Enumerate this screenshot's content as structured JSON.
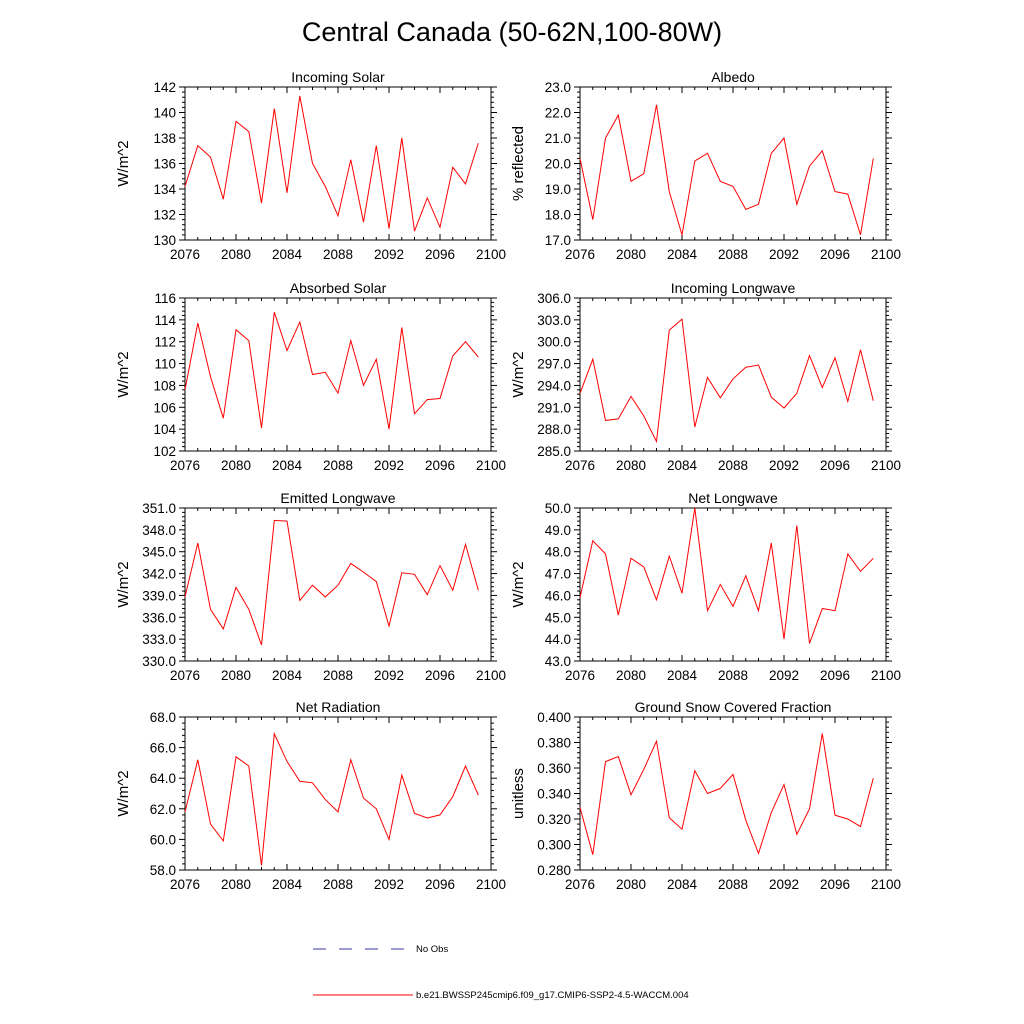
{
  "figure": {
    "title": "Central Canada (50-62N,100-80W)",
    "colors": {
      "series": "#ff0000",
      "obs": "#3a3aa0",
      "axis": "#000000"
    }
  },
  "legend": {
    "obs_label": "No Obs",
    "model_label": "b.e21.BWSSP245cmip6.f09_g17.CMIP6-SSP2-4.5-WACCM.004"
  },
  "chart_data": [
    {
      "type": "line",
      "title": "Incoming Solar",
      "ylabel": "W/m^2",
      "xlabel": "",
      "xlim": [
        2076,
        2100
      ],
      "xticks": [
        2076,
        2080,
        2084,
        2088,
        2092,
        2096,
        2100
      ],
      "ylim": [
        130,
        142
      ],
      "yticks": [
        130,
        132,
        134,
        136,
        138,
        140,
        142
      ],
      "ytick_decimals": 0,
      "x": [
        2076,
        2077,
        2078,
        2079,
        2080,
        2081,
        2082,
        2083,
        2084,
        2085,
        2086,
        2087,
        2088,
        2089,
        2090,
        2091,
        2092,
        2093,
        2094,
        2095,
        2096,
        2097,
        2098,
        2099
      ],
      "values": [
        134.2,
        137.4,
        136.5,
        133.2,
        139.3,
        138.5,
        132.9,
        140.3,
        133.7,
        141.3,
        136.0,
        134.2,
        131.9,
        136.3,
        131.4,
        137.4,
        130.9,
        138.0,
        130.7,
        133.3,
        131.0,
        135.7,
        134.4,
        137.6
      ]
    },
    {
      "type": "line",
      "title": "Albedo",
      "ylabel": "% reflected",
      "xlabel": "",
      "xlim": [
        2076,
        2100
      ],
      "xticks": [
        2076,
        2080,
        2084,
        2088,
        2092,
        2096,
        2100
      ],
      "ylim": [
        17.0,
        23.0
      ],
      "yticks": [
        17.0,
        18.0,
        19.0,
        20.0,
        21.0,
        22.0,
        23.0
      ],
      "ytick_decimals": 1,
      "x": [
        2076,
        2077,
        2078,
        2079,
        2080,
        2081,
        2082,
        2083,
        2084,
        2085,
        2086,
        2087,
        2088,
        2089,
        2090,
        2091,
        2092,
        2093,
        2094,
        2095,
        2096,
        2097,
        2098,
        2099
      ],
      "values": [
        20.2,
        17.8,
        21.0,
        21.9,
        19.3,
        19.6,
        22.3,
        18.9,
        17.2,
        20.1,
        20.4,
        19.3,
        19.1,
        18.2,
        18.4,
        20.4,
        21.0,
        18.4,
        19.9,
        20.5,
        18.9,
        18.8,
        17.2,
        20.2
      ]
    },
    {
      "type": "line",
      "title": "Absorbed Solar",
      "ylabel": "W/m^2",
      "xlabel": "",
      "xlim": [
        2076,
        2100
      ],
      "xticks": [
        2076,
        2080,
        2084,
        2088,
        2092,
        2096,
        2100
      ],
      "ylim": [
        102,
        116
      ],
      "yticks": [
        102,
        104,
        106,
        108,
        110,
        112,
        114,
        116
      ],
      "ytick_decimals": 0,
      "x": [
        2076,
        2077,
        2078,
        2079,
        2080,
        2081,
        2082,
        2083,
        2084,
        2085,
        2086,
        2087,
        2088,
        2089,
        2090,
        2091,
        2092,
        2093,
        2094,
        2095,
        2096,
        2097,
        2098,
        2099
      ],
      "values": [
        107.6,
        113.7,
        108.8,
        105.0,
        113.1,
        112.1,
        104.1,
        114.7,
        111.2,
        113.8,
        109.0,
        109.2,
        107.3,
        112.1,
        108.0,
        110.4,
        104.0,
        113.3,
        105.4,
        106.7,
        106.8,
        110.7,
        112.0,
        110.6
      ]
    },
    {
      "type": "line",
      "title": "Incoming Longwave",
      "ylabel": "W/m^2",
      "xlabel": "",
      "xlim": [
        2076,
        2100
      ],
      "xticks": [
        2076,
        2080,
        2084,
        2088,
        2092,
        2096,
        2100
      ],
      "ylim": [
        285.0,
        306.0
      ],
      "yticks": [
        285.0,
        288.0,
        291.0,
        294.0,
        297.0,
        300.0,
        303.0,
        306.0
      ],
      "ytick_decimals": 1,
      "x": [
        2076,
        2077,
        2078,
        2079,
        2080,
        2081,
        2082,
        2083,
        2084,
        2085,
        2086,
        2087,
        2088,
        2089,
        2090,
        2091,
        2092,
        2093,
        2094,
        2095,
        2096,
        2097,
        2098,
        2099
      ],
      "values": [
        292.9,
        297.6,
        289.2,
        289.4,
        292.5,
        289.8,
        286.3,
        301.6,
        303.1,
        288.3,
        295.1,
        292.3,
        294.9,
        296.5,
        296.8,
        292.4,
        290.9,
        292.9,
        298.1,
        293.7,
        297.8,
        291.8,
        298.9,
        291.9
      ]
    },
    {
      "type": "line",
      "title": "Emitted Longwave",
      "ylabel": "W/m^2",
      "xlabel": "",
      "xlim": [
        2076,
        2100
      ],
      "xticks": [
        2076,
        2080,
        2084,
        2088,
        2092,
        2096,
        2100
      ],
      "ylim": [
        330.0,
        351.0
      ],
      "yticks": [
        330.0,
        333.0,
        336.0,
        339.0,
        342.0,
        345.0,
        348.0,
        351.0
      ],
      "ytick_decimals": 1,
      "x": [
        2076,
        2077,
        2078,
        2079,
        2080,
        2081,
        2082,
        2083,
        2084,
        2085,
        2086,
        2087,
        2088,
        2089,
        2090,
        2091,
        2092,
        2093,
        2094,
        2095,
        2096,
        2097,
        2098,
        2099
      ],
      "values": [
        338.8,
        346.2,
        337.1,
        334.4,
        340.1,
        337.1,
        332.2,
        349.3,
        349.2,
        338.3,
        340.4,
        338.8,
        340.4,
        343.4,
        342.2,
        340.9,
        334.8,
        342.1,
        341.9,
        339.1,
        343.1,
        339.7,
        346.0,
        339.7
      ]
    },
    {
      "type": "line",
      "title": "Net Longwave",
      "ylabel": "W/m^2",
      "xlabel": "",
      "xlim": [
        2076,
        2100
      ],
      "xticks": [
        2076,
        2080,
        2084,
        2088,
        2092,
        2096,
        2100
      ],
      "ylim": [
        43.0,
        50.0
      ],
      "yticks": [
        43.0,
        44.0,
        45.0,
        46.0,
        47.0,
        48.0,
        49.0,
        50.0
      ],
      "ytick_decimals": 1,
      "x": [
        2076,
        2077,
        2078,
        2079,
        2080,
        2081,
        2082,
        2083,
        2084,
        2085,
        2086,
        2087,
        2088,
        2089,
        2090,
        2091,
        2092,
        2093,
        2094,
        2095,
        2096,
        2097,
        2098,
        2099
      ],
      "values": [
        45.9,
        48.5,
        47.9,
        45.1,
        47.7,
        47.3,
        45.8,
        47.8,
        46.1,
        50.0,
        45.3,
        46.5,
        45.5,
        46.9,
        45.3,
        48.4,
        44.0,
        49.2,
        43.8,
        45.4,
        45.3,
        47.9,
        47.1,
        47.7
      ]
    },
    {
      "type": "line",
      "title": "Net Radiation",
      "ylabel": "W/m^2",
      "xlabel": "",
      "xlim": [
        2076,
        2100
      ],
      "xticks": [
        2076,
        2080,
        2084,
        2088,
        2092,
        2096,
        2100
      ],
      "ylim": [
        58.0,
        68.0
      ],
      "yticks": [
        58.0,
        60.0,
        62.0,
        64.0,
        66.0,
        68.0
      ],
      "ytick_decimals": 1,
      "x": [
        2076,
        2077,
        2078,
        2079,
        2080,
        2081,
        2082,
        2083,
        2084,
        2085,
        2086,
        2087,
        2088,
        2089,
        2090,
        2091,
        2092,
        2093,
        2094,
        2095,
        2096,
        2097,
        2098,
        2099
      ],
      "values": [
        61.8,
        65.2,
        61.0,
        59.9,
        65.4,
        64.8,
        58.3,
        66.9,
        65.1,
        63.8,
        63.7,
        62.6,
        61.8,
        65.2,
        62.7,
        62.0,
        60.0,
        64.2,
        61.7,
        61.4,
        61.6,
        62.8,
        64.8,
        62.9
      ]
    },
    {
      "type": "line",
      "title": "Ground Snow Covered Fraction",
      "ylabel": "unitless",
      "xlabel": "",
      "xlim": [
        2076,
        2100
      ],
      "xticks": [
        2076,
        2080,
        2084,
        2088,
        2092,
        2096,
        2100
      ],
      "ylim": [
        0.28,
        0.4
      ],
      "yticks": [
        0.28,
        0.3,
        0.32,
        0.34,
        0.36,
        0.38,
        0.4
      ],
      "ytick_decimals": 3,
      "x": [
        2076,
        2077,
        2078,
        2079,
        2080,
        2081,
        2082,
        2083,
        2084,
        2085,
        2086,
        2087,
        2088,
        2089,
        2090,
        2091,
        2092,
        2093,
        2094,
        2095,
        2096,
        2097,
        2098,
        2099
      ],
      "values": [
        0.329,
        0.292,
        0.365,
        0.369,
        0.339,
        0.359,
        0.381,
        0.321,
        0.312,
        0.358,
        0.34,
        0.344,
        0.355,
        0.319,
        0.293,
        0.325,
        0.347,
        0.308,
        0.328,
        0.387,
        0.323,
        0.32,
        0.314,
        0.352
      ]
    }
  ]
}
